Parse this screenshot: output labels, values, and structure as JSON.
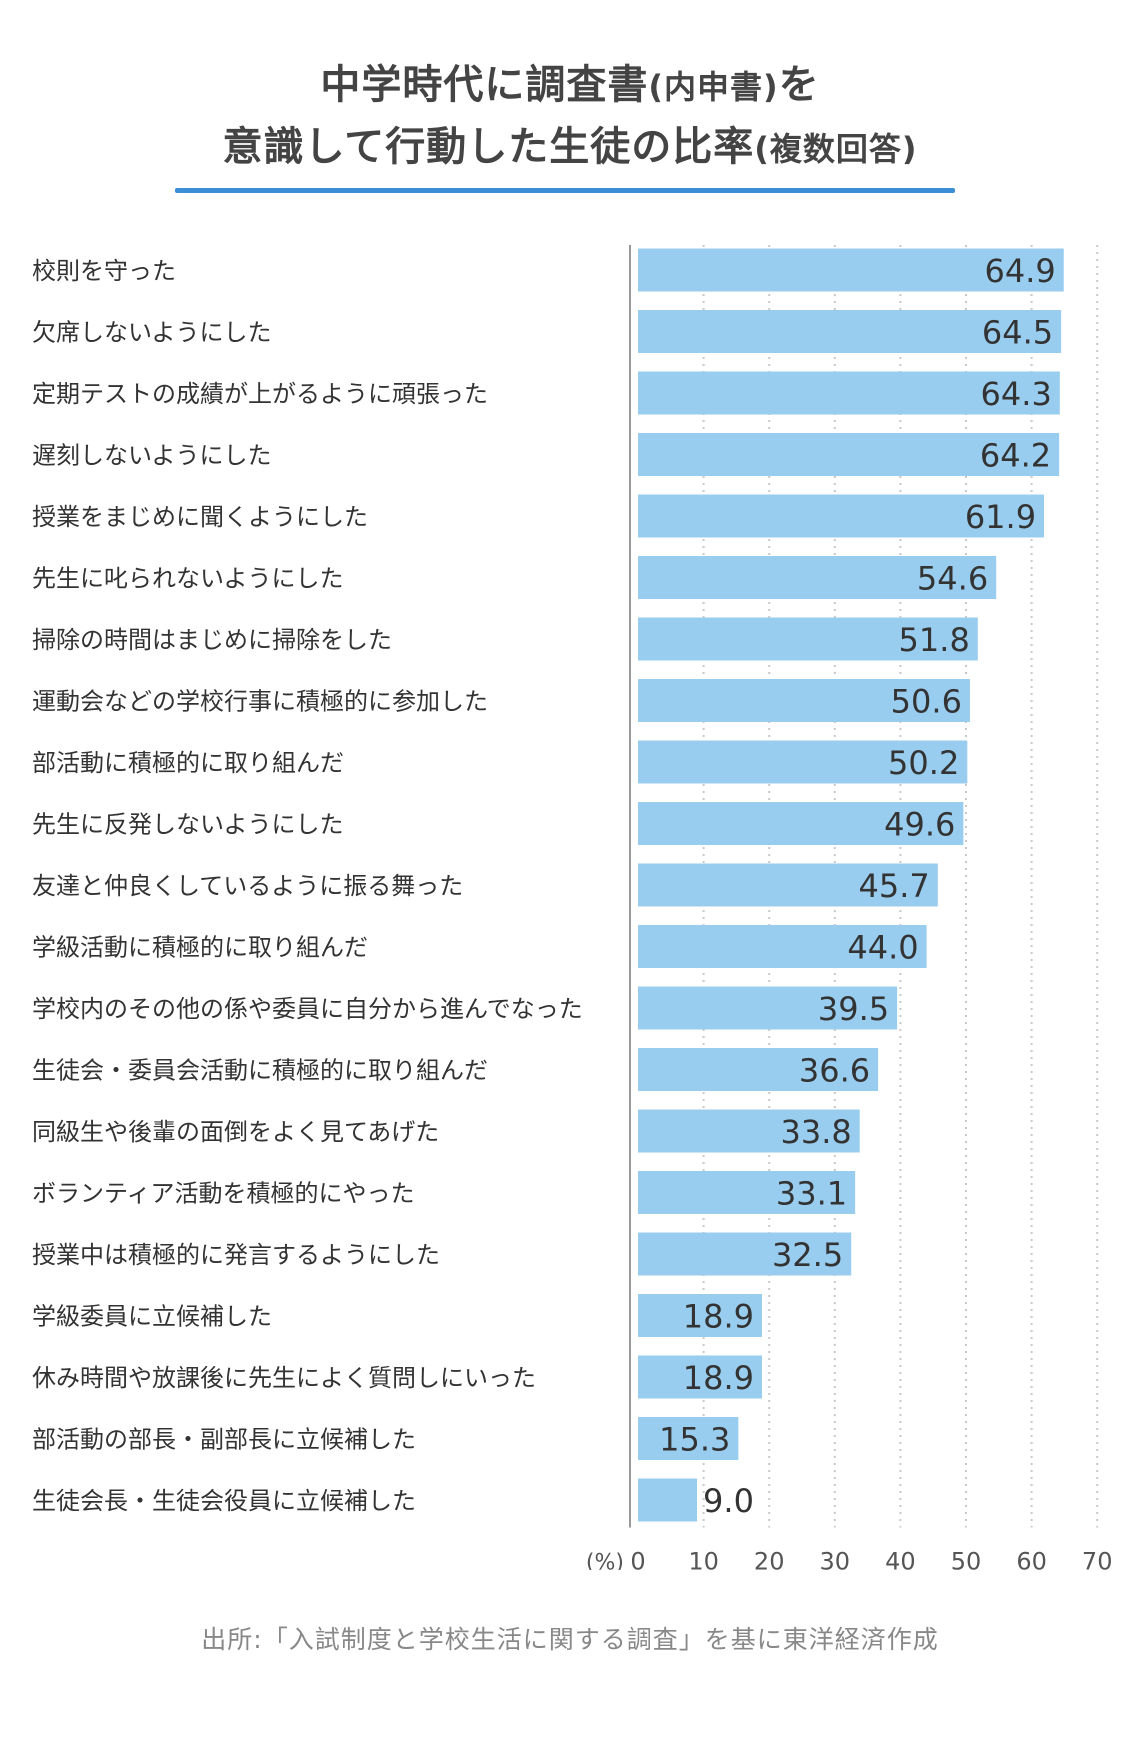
{
  "title": {
    "line1_main": "中学時代に調査書",
    "line1_paren": "(内申書)",
    "line1_tail": "を",
    "line2_main": "意識して行動した生徒の比率",
    "line2_paren": "(複数回答)"
  },
  "source": "出所:「入試制度と学校生活に関する調査」を基に東洋経済作成",
  "colors": {
    "bar": "#99cdef",
    "title_rule": "#3a8fd6",
    "grid": "#c8c8c8"
  },
  "chart_data": {
    "type": "bar",
    "orientation": "horizontal",
    "unit_label": "(%)",
    "xlim": [
      0,
      70
    ],
    "xticks": [
      "0",
      "10",
      "20",
      "30",
      "40",
      "50",
      "60",
      "70"
    ],
    "grid": true,
    "grid_style": "dotted-vertical",
    "categories": [
      "校則を守った",
      "欠席しないようにした",
      "定期テストの成績が上がるように頑張った",
      "遅刻しないようにした",
      "授業をまじめに聞くようにした",
      "先生に叱られないようにした",
      "掃除の時間はまじめに掃除をした",
      "運動会などの学校行事に積極的に参加した",
      "部活動に積極的に取り組んだ",
      "先生に反発しないようにした",
      "友達と仲良くしているように振る舞った",
      "学級活動に積極的に取り組んだ",
      "学校内のその他の係や委員に自分から進んでなった",
      "生徒会・委員会活動に積極的に取り組んだ",
      "同級生や後輩の面倒をよく見てあげた",
      "ボランティア活動を積極的にやった",
      "授業中は積極的に発言するようにした",
      "学級委員に立候補した",
      "休み時間や放課後に先生によく質問しにいった",
      "部活動の部長・副部長に立候補した",
      "生徒会長・生徒会役員に立候補した"
    ],
    "values": [
      64.9,
      64.5,
      64.3,
      64.2,
      61.9,
      54.6,
      51.8,
      50.6,
      50.2,
      49.6,
      45.7,
      44.0,
      39.5,
      36.6,
      33.8,
      33.1,
      32.5,
      18.9,
      18.9,
      15.3,
      9.0
    ],
    "value_labels": [
      "64.9",
      "64.5",
      "64.3",
      "64.2",
      "61.9",
      "54.6",
      "51.8",
      "50.6",
      "50.2",
      "49.6",
      "45.7",
      "44.0",
      "39.5",
      "36.6",
      "33.8",
      "33.1",
      "32.5",
      "18.9",
      "18.9",
      "15.3",
      "9.0"
    ]
  }
}
